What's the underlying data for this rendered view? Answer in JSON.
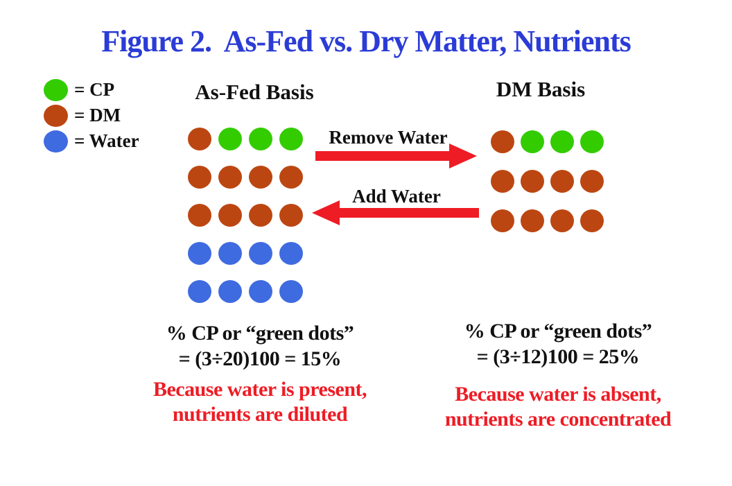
{
  "title": "Figure 2.  As-Fed vs. Dry Matter, Nutrients",
  "colors": {
    "title": "#2B3CD6",
    "text": "#111111",
    "red": "#EE1C25",
    "cp": "#33CC00",
    "dm": "#BC4611",
    "water": "#3F6BE0"
  },
  "legend": {
    "items": [
      {
        "key": "cp",
        "label": "= CP"
      },
      {
        "key": "dm",
        "label": "= DM"
      },
      {
        "key": "water",
        "label": "= Water"
      }
    ]
  },
  "arrows": {
    "remove_label": "Remove Water",
    "add_label": "Add Water"
  },
  "panels": {
    "left": {
      "heading": "As-Fed Basis",
      "grid": [
        [
          "dm",
          "cp",
          "cp",
          "cp"
        ],
        [
          "dm",
          "dm",
          "dm",
          "dm"
        ],
        [
          "dm",
          "dm",
          "dm",
          "dm"
        ],
        [
          "water",
          "water",
          "water",
          "water"
        ],
        [
          "water",
          "water",
          "water",
          "water"
        ]
      ],
      "formula_line1": "% CP or “green dots”",
      "formula_line2": "= (3÷20)100 = 15%",
      "note_line1": "Because water is present,",
      "note_line2": "nutrients are diluted"
    },
    "right": {
      "heading": "DM Basis",
      "grid": [
        [
          "dm",
          "cp",
          "cp",
          "cp"
        ],
        [
          "dm",
          "dm",
          "dm",
          "dm"
        ],
        [
          "dm",
          "dm",
          "dm",
          "dm"
        ]
      ],
      "formula_line1": "% CP or “green dots”",
      "formula_line2": "= (3÷12)100 = 25%",
      "note_line1": "Because water is absent,",
      "note_line2": "nutrients are concentrated"
    }
  }
}
